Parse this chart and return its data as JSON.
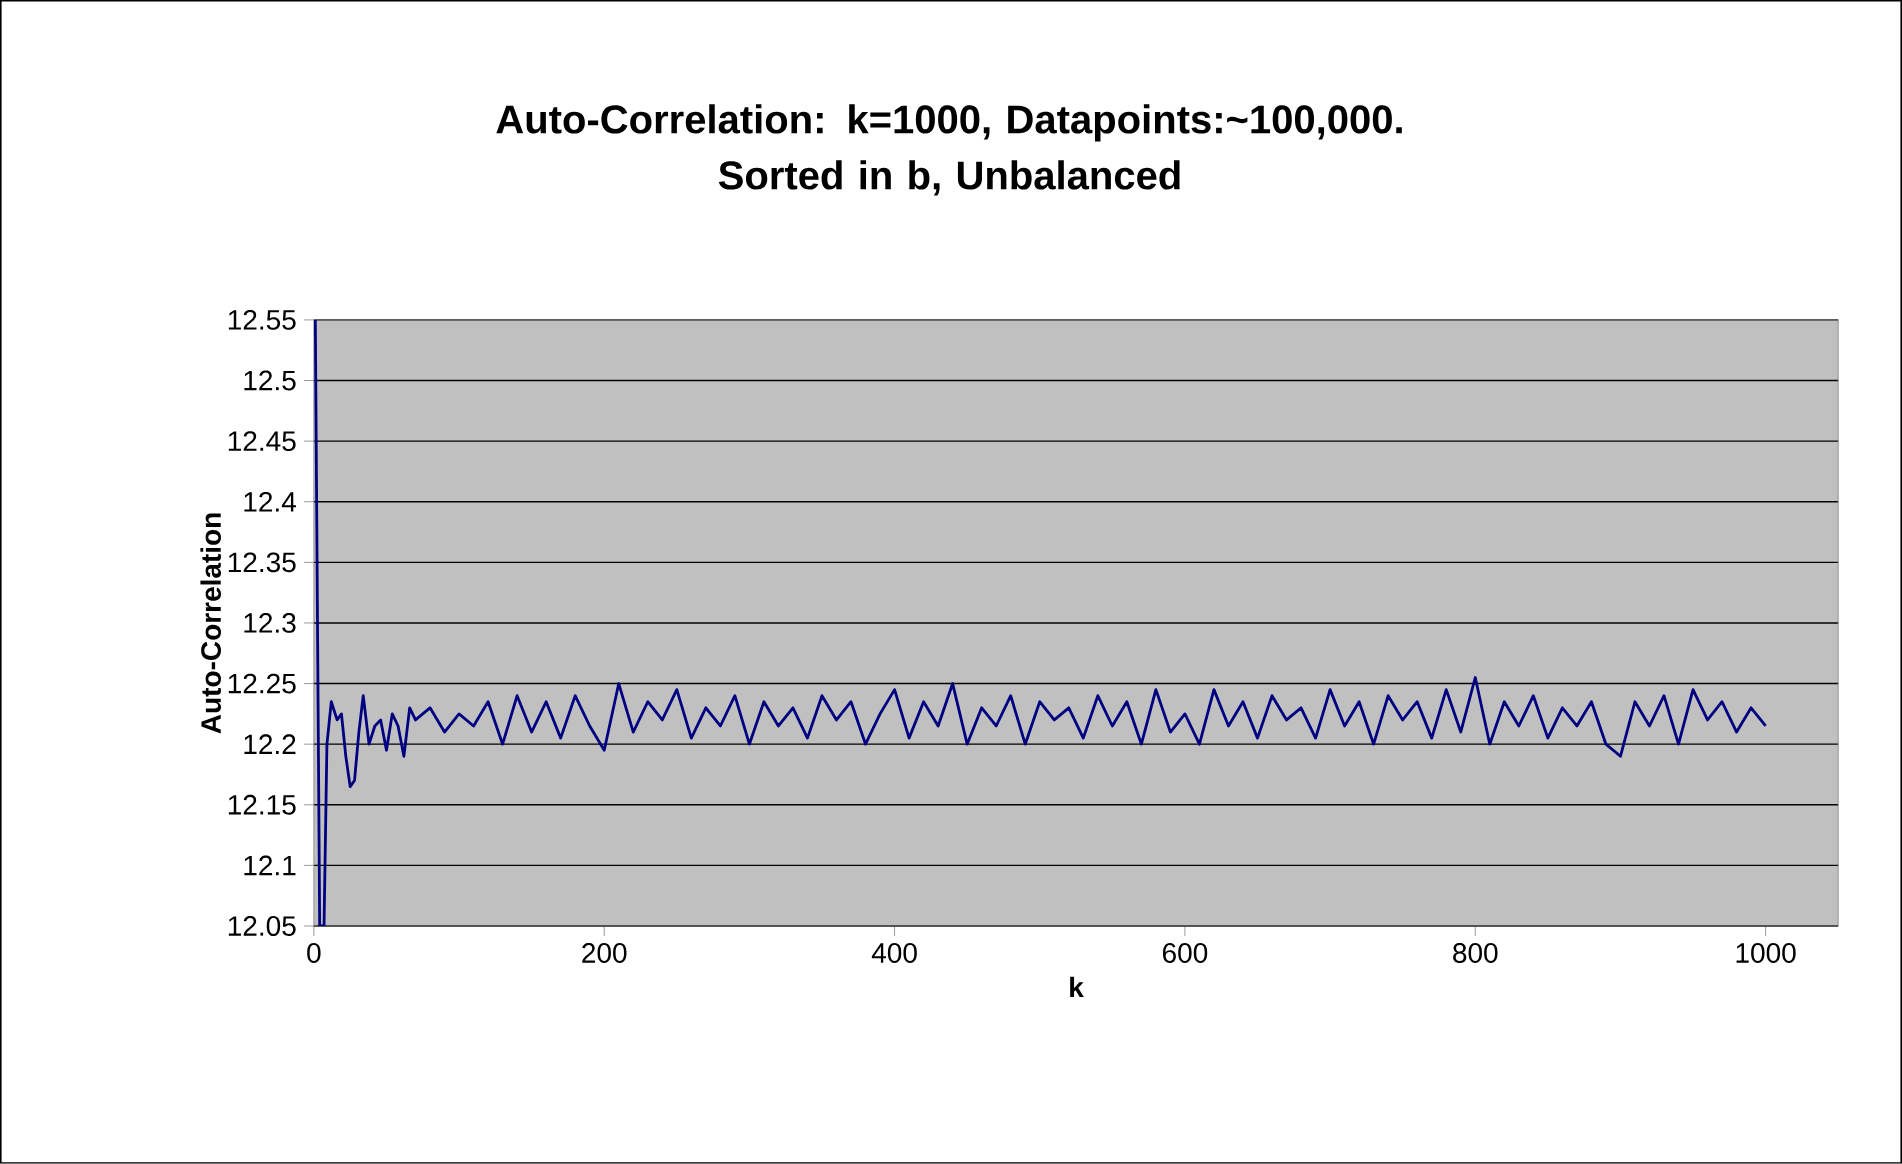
{
  "chart_data": {
    "type": "line",
    "title": "Auto-Correlation: k=1000, Datapoints:~100,000.\nSorted in b, Unbalanced",
    "xlabel": "k",
    "ylabel": "Auto-Correlation",
    "xlim": [
      0,
      1050
    ],
    "xticks": [
      0,
      200,
      400,
      600,
      800,
      1000
    ],
    "ylim": [
      12.05,
      12.55
    ],
    "yticks": [
      12.05,
      12.1,
      12.15,
      12.2,
      12.25,
      12.3,
      12.35,
      12.4,
      12.45,
      12.5,
      12.55
    ],
    "grid": "y",
    "legend": false,
    "series": [
      {
        "color": "#000080",
        "x": [
          1,
          4,
          7,
          9,
          12,
          16,
          19,
          22,
          25,
          28,
          31,
          34,
          38,
          42,
          46,
          50,
          54,
          58,
          62,
          66,
          70,
          80,
          90,
          100,
          110,
          120,
          130,
          140,
          150,
          160,
          170,
          180,
          190,
          200,
          210,
          220,
          230,
          240,
          250,
          260,
          270,
          280,
          290,
          300,
          310,
          320,
          330,
          340,
          350,
          360,
          370,
          380,
          390,
          400,
          410,
          420,
          430,
          440,
          450,
          460,
          470,
          480,
          490,
          500,
          510,
          520,
          530,
          540,
          550,
          560,
          570,
          580,
          590,
          600,
          610,
          620,
          630,
          640,
          650,
          660,
          670,
          680,
          690,
          700,
          710,
          720,
          730,
          740,
          750,
          760,
          770,
          780,
          790,
          800,
          810,
          820,
          830,
          840,
          850,
          860,
          870,
          880,
          890,
          900,
          910,
          920,
          930,
          940,
          950,
          960,
          970,
          980,
          990,
          1000
        ],
        "values": [
          12.55,
          12.05,
          12.05,
          12.2,
          12.235,
          12.22,
          12.225,
          12.19,
          12.165,
          12.17,
          12.21,
          12.24,
          12.2,
          12.215,
          12.22,
          12.195,
          12.225,
          12.215,
          12.19,
          12.23,
          12.22,
          12.23,
          12.21,
          12.225,
          12.215,
          12.235,
          12.2,
          12.24,
          12.21,
          12.235,
          12.205,
          12.24,
          12.215,
          12.195,
          12.25,
          12.21,
          12.235,
          12.22,
          12.245,
          12.205,
          12.23,
          12.215,
          12.24,
          12.2,
          12.235,
          12.215,
          12.23,
          12.205,
          12.24,
          12.22,
          12.235,
          12.2,
          12.225,
          12.245,
          12.205,
          12.235,
          12.215,
          12.25,
          12.2,
          12.23,
          12.215,
          12.24,
          12.2,
          12.235,
          12.22,
          12.23,
          12.205,
          12.24,
          12.215,
          12.235,
          12.2,
          12.245,
          12.21,
          12.225,
          12.2,
          12.245,
          12.215,
          12.235,
          12.205,
          12.24,
          12.22,
          12.23,
          12.205,
          12.245,
          12.215,
          12.235,
          12.2,
          12.24,
          12.22,
          12.235,
          12.205,
          12.245,
          12.21,
          12.255,
          12.2,
          12.235,
          12.215,
          12.24,
          12.205,
          12.23,
          12.215,
          12.235,
          12.2,
          12.19,
          12.235,
          12.215,
          12.24,
          12.2,
          12.245,
          12.22,
          12.235,
          12.21,
          12.23,
          12.215
        ]
      }
    ]
  }
}
